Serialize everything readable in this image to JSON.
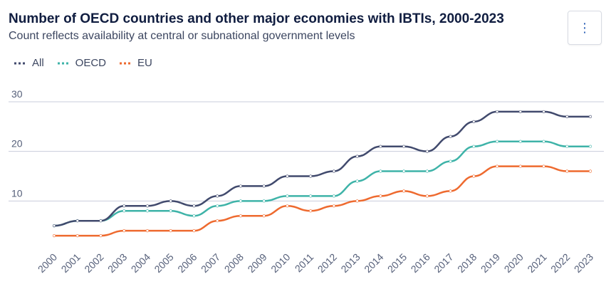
{
  "header": {
    "title": "Number of OECD countries and other major economies with IBTIs, 2000-2023",
    "subtitle": "Count reflects availability at central or subnational government levels",
    "menu_icon": "more-vertical-icon",
    "menu_glyph": "⋮"
  },
  "colors": {
    "All": "#414a6d",
    "OECD": "#3eb3a8",
    "EU": "#ee6a2f",
    "grid": "#c9ccdb",
    "axis_text": "#56607a"
  },
  "chart_data": {
    "type": "line",
    "title": "Number of OECD countries and other major economies with IBTIs, 2000-2023",
    "subtitle": "Count reflects availability at central or subnational government levels",
    "xlabel": "",
    "ylabel": "",
    "ylim": [
      0,
      30
    ],
    "yticks": [
      10,
      20,
      30
    ],
    "grid": true,
    "legend_position": "top-left",
    "categories": [
      "2000",
      "2001",
      "2002",
      "2003",
      "2004",
      "2005",
      "2006",
      "2007",
      "2008",
      "2009",
      "2010",
      "2011",
      "2012",
      "2013",
      "2014",
      "2015",
      "2016",
      "2017",
      "2018",
      "2019",
      "2020",
      "2021",
      "2022",
      "2023"
    ],
    "series": [
      {
        "name": "All",
        "values": [
          5,
          6,
          6,
          9,
          9,
          10,
          9,
          11,
          13,
          13,
          15,
          15,
          16,
          19,
          21,
          21,
          20,
          23,
          26,
          28,
          28,
          28,
          27,
          27
        ]
      },
      {
        "name": "OECD",
        "values": [
          5,
          6,
          6,
          8,
          8,
          8,
          7,
          9,
          10,
          10,
          11,
          11,
          11,
          14,
          16,
          16,
          16,
          18,
          21,
          22,
          22,
          22,
          21,
          21
        ]
      },
      {
        "name": "EU",
        "values": [
          3,
          3,
          3,
          4,
          4,
          4,
          4,
          6,
          7,
          7,
          9,
          8,
          9,
          10,
          11,
          12,
          11,
          12,
          15,
          17,
          17,
          17,
          16,
          16
        ]
      }
    ]
  }
}
